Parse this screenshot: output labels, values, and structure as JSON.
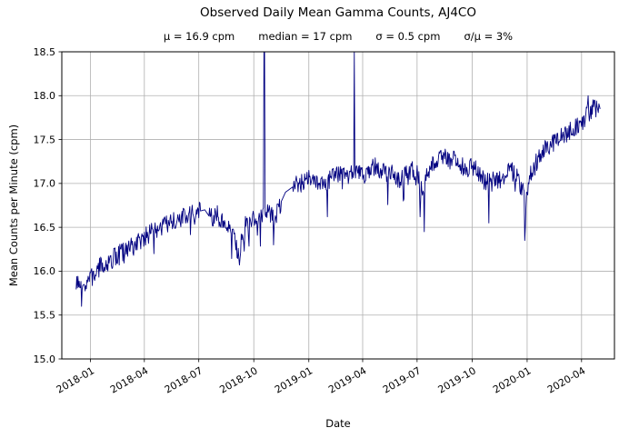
{
  "chart_data": {
    "type": "line",
    "title": "Observed Daily Mean Gamma Counts, AJ4CO",
    "stats": [
      "μ = 16.9 cpm",
      "median = 17 cpm",
      "σ = 0.5 cpm",
      "σ/μ = 3%"
    ],
    "xlabel": "Date",
    "ylabel": "Mean Counts per Minute (cpm)",
    "series_name": "daily-mean-gamma-counts",
    "line_color": "#000080",
    "grid_color": "#b0b0b0",
    "ylim": [
      15.0,
      18.5
    ],
    "yticks": [
      15.0,
      15.5,
      16.0,
      16.5,
      17.0,
      17.5,
      18.0,
      18.5
    ],
    "ytick_labels": [
      "15.0",
      "15.5",
      "16.0",
      "16.5",
      "17.0",
      "17.5",
      "18.0",
      "18.5"
    ],
    "x_start_date": "2017-12-08",
    "x_end_day": 876,
    "xlim_days": [
      -24,
      900
    ],
    "xticks": [
      {
        "day": 24,
        "label": "2018-01"
      },
      {
        "day": 114,
        "label": "2018-04"
      },
      {
        "day": 205,
        "label": "2018-07"
      },
      {
        "day": 297,
        "label": "2018-10"
      },
      {
        "day": 389,
        "label": "2019-01"
      },
      {
        "day": 479,
        "label": "2019-04"
      },
      {
        "day": 570,
        "label": "2019-07"
      },
      {
        "day": 662,
        "label": "2019-10"
      },
      {
        "day": 754,
        "label": "2020-01"
      },
      {
        "day": 845,
        "label": "2020-04"
      }
    ],
    "trend_anchors": [
      [
        0,
        15.85
      ],
      [
        10,
        15.8
      ],
      [
        20,
        15.9
      ],
      [
        30,
        15.95
      ],
      [
        40,
        16.05
      ],
      [
        55,
        16.1
      ],
      [
        70,
        16.2
      ],
      [
        85,
        16.25
      ],
      [
        100,
        16.3
      ],
      [
        115,
        16.4
      ],
      [
        130,
        16.45
      ],
      [
        145,
        16.5
      ],
      [
        160,
        16.55
      ],
      [
        175,
        16.6
      ],
      [
        190,
        16.65
      ],
      [
        205,
        16.68
      ],
      [
        215,
        16.7
      ],
      [
        225,
        16.6
      ],
      [
        235,
        16.65
      ],
      [
        245,
        16.55
      ],
      [
        255,
        16.5
      ],
      [
        265,
        16.35
      ],
      [
        272,
        16.2
      ],
      [
        278,
        16.45
      ],
      [
        285,
        16.55
      ],
      [
        295,
        16.6
      ],
      [
        305,
        16.6
      ],
      [
        312,
        16.65
      ],
      [
        318,
        16.7
      ],
      [
        325,
        16.65
      ],
      [
        332,
        16.6
      ],
      [
        340,
        16.75
      ],
      [
        350,
        16.9
      ],
      [
        360,
        16.95
      ],
      [
        370,
        17.0
      ],
      [
        380,
        17.0
      ],
      [
        390,
        17.05
      ],
      [
        400,
        17.0
      ],
      [
        410,
        17.05
      ],
      [
        420,
        17.0
      ],
      [
        430,
        17.1
      ],
      [
        440,
        17.1
      ],
      [
        450,
        17.1
      ],
      [
        460,
        17.1
      ],
      [
        470,
        17.15
      ],
      [
        480,
        17.1
      ],
      [
        490,
        17.15
      ],
      [
        500,
        17.2
      ],
      [
        510,
        17.15
      ],
      [
        520,
        17.1
      ],
      [
        530,
        17.15
      ],
      [
        540,
        17.0
      ],
      [
        550,
        17.1
      ],
      [
        560,
        17.15
      ],
      [
        570,
        17.1
      ],
      [
        578,
        16.9
      ],
      [
        585,
        17.1
      ],
      [
        595,
        17.2
      ],
      [
        605,
        17.3
      ],
      [
        615,
        17.3
      ],
      [
        625,
        17.25
      ],
      [
        635,
        17.3
      ],
      [
        645,
        17.2
      ],
      [
        655,
        17.15
      ],
      [
        665,
        17.2
      ],
      [
        675,
        17.1
      ],
      [
        685,
        17.0
      ],
      [
        695,
        17.1
      ],
      [
        705,
        17.0
      ],
      [
        715,
        17.1
      ],
      [
        725,
        17.15
      ],
      [
        735,
        17.1
      ],
      [
        745,
        16.95
      ],
      [
        752,
        16.8
      ],
      [
        758,
        17.1
      ],
      [
        765,
        17.2
      ],
      [
        775,
        17.3
      ],
      [
        785,
        17.4
      ],
      [
        795,
        17.45
      ],
      [
        805,
        17.5
      ],
      [
        815,
        17.55
      ],
      [
        825,
        17.6
      ],
      [
        835,
        17.65
      ],
      [
        845,
        17.7
      ],
      [
        855,
        17.8
      ],
      [
        865,
        17.85
      ],
      [
        876,
        17.85
      ]
    ],
    "noise": {
      "seed": 7,
      "amplitude": 0.11,
      "dip_probability": 0.04,
      "dip_extra": 0.25
    },
    "smooth_ranges": [
      [
        208,
        222
      ],
      [
        343,
        362
      ]
    ],
    "overrides": [
      [
        9,
        15.6
      ],
      [
        273,
        16.07
      ],
      [
        274,
        16.15
      ],
      [
        314,
        19.6
      ],
      [
        315,
        18.9
      ],
      [
        330,
        16.3
      ],
      [
        420,
        16.62
      ],
      [
        465,
        18.6
      ],
      [
        547,
        16.8
      ],
      [
        575,
        16.62
      ],
      [
        582,
        16.45
      ],
      [
        690,
        16.55
      ],
      [
        750,
        16.35
      ],
      [
        751,
        16.5
      ],
      [
        856,
        18.0
      ]
    ]
  }
}
